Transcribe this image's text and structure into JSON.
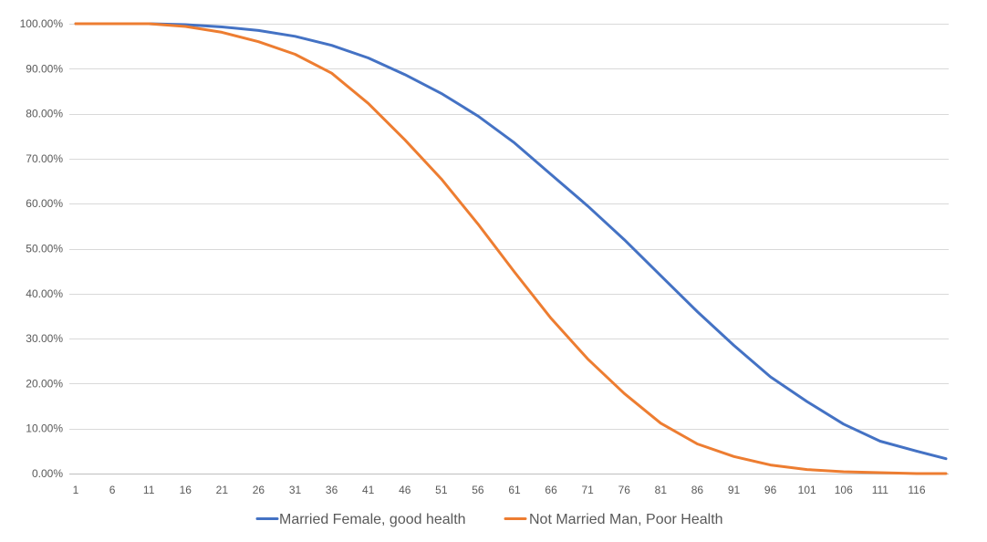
{
  "chart_data": {
    "type": "line",
    "title": "",
    "xlabel": "",
    "ylabel": "",
    "x_range": [
      1,
      120
    ],
    "x_tick_step": 5,
    "x_tick_labels": [
      "1",
      "6",
      "11",
      "16",
      "21",
      "26",
      "31",
      "36",
      "41",
      "46",
      "51",
      "56",
      "61",
      "66",
      "71",
      "76",
      "81",
      "86",
      "91",
      "96",
      "101",
      "106",
      "111",
      "116"
    ],
    "ylim": [
      0,
      1
    ],
    "y_ticks": [
      0,
      0.1,
      0.2,
      0.3,
      0.4,
      0.5,
      0.6,
      0.7,
      0.8,
      0.9,
      1.0
    ],
    "y_tick_labels": [
      "0.00%",
      "10.00%",
      "20.00%",
      "30.00%",
      "40.00%",
      "50.00%",
      "60.00%",
      "70.00%",
      "80.00%",
      "90.00%",
      "100.00%"
    ],
    "grid": true,
    "legend_position": "bottom",
    "series": [
      {
        "name": "Married Female, good health",
        "color": "#4472c4",
        "points": [
          [
            1,
            1.0
          ],
          [
            6,
            1.0
          ],
          [
            11,
            1.0
          ],
          [
            16,
            0.998
          ],
          [
            21,
            0.993
          ],
          [
            26,
            0.985
          ],
          [
            31,
            0.972
          ],
          [
            36,
            0.952
          ],
          [
            41,
            0.924
          ],
          [
            46,
            0.887
          ],
          [
            51,
            0.845
          ],
          [
            56,
            0.795
          ],
          [
            61,
            0.735
          ],
          [
            66,
            0.665
          ],
          [
            71,
            0.595
          ],
          [
            76,
            0.52
          ],
          [
            81,
            0.44
          ],
          [
            86,
            0.36
          ],
          [
            91,
            0.285
          ],
          [
            96,
            0.215
          ],
          [
            101,
            0.16
          ],
          [
            106,
            0.11
          ],
          [
            111,
            0.072
          ],
          [
            116,
            0.05
          ],
          [
            120,
            0.033
          ]
        ]
      },
      {
        "name": "Not Married Man, Poor Health",
        "color": "#ed7d31",
        "points": [
          [
            1,
            1.0
          ],
          [
            6,
            1.0
          ],
          [
            11,
            1.0
          ],
          [
            16,
            0.994
          ],
          [
            21,
            0.981
          ],
          [
            26,
            0.96
          ],
          [
            31,
            0.932
          ],
          [
            36,
            0.89
          ],
          [
            41,
            0.823
          ],
          [
            46,
            0.742
          ],
          [
            51,
            0.655
          ],
          [
            56,
            0.555
          ],
          [
            61,
            0.448
          ],
          [
            66,
            0.345
          ],
          [
            71,
            0.255
          ],
          [
            76,
            0.178
          ],
          [
            81,
            0.112
          ],
          [
            86,
            0.066
          ],
          [
            91,
            0.038
          ],
          [
            96,
            0.019
          ],
          [
            101,
            0.009
          ],
          [
            106,
            0.004
          ],
          [
            111,
            0.002
          ],
          [
            116,
            0.0
          ],
          [
            120,
            0.0
          ]
        ]
      }
    ]
  }
}
